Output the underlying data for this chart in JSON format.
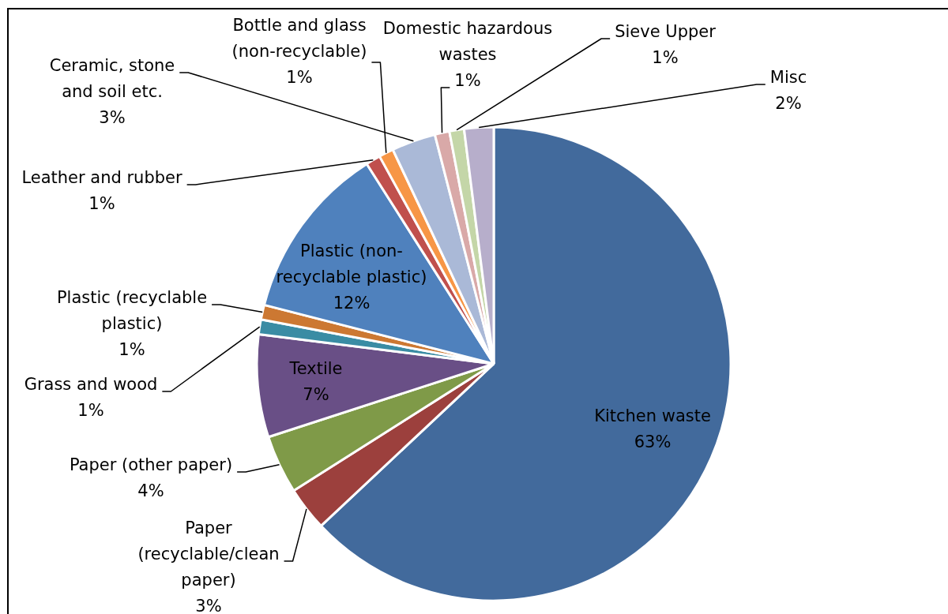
{
  "chart_data": {
    "type": "pie",
    "categories": [
      "Kitchen waste",
      "Paper (recyclable/clean paper)",
      "Paper (other paper)",
      "Textile",
      "Grass and wood",
      "Plastic (recyclable plastic)",
      "Plastic (non-recyclable plastic)",
      "Leather and rubber",
      "Bottle and glass (non-recyclable)",
      "Ceramic, stone and soil etc.",
      "Domestic hazardous wastes",
      "Sieve Upper",
      "Misc"
    ],
    "values": [
      63,
      3,
      4,
      7,
      1,
      1,
      12,
      1,
      1,
      3,
      1,
      1,
      2
    ],
    "value_labels": [
      "63%",
      "3%",
      "4%",
      "7%",
      "1%",
      "1%",
      "12%",
      "1%",
      "1%",
      "3%",
      "1%",
      "1%",
      "2%"
    ],
    "colors": [
      "#426a9c",
      "#9c403d",
      "#7f9a48",
      "#694f86",
      "#3a8ca4",
      "#cc7832",
      "#4f81bd",
      "#c0504d",
      "#f79646",
      "#aab9d7",
      "#d9a9a8",
      "#c4d6a8",
      "#b7aecb"
    ]
  }
}
